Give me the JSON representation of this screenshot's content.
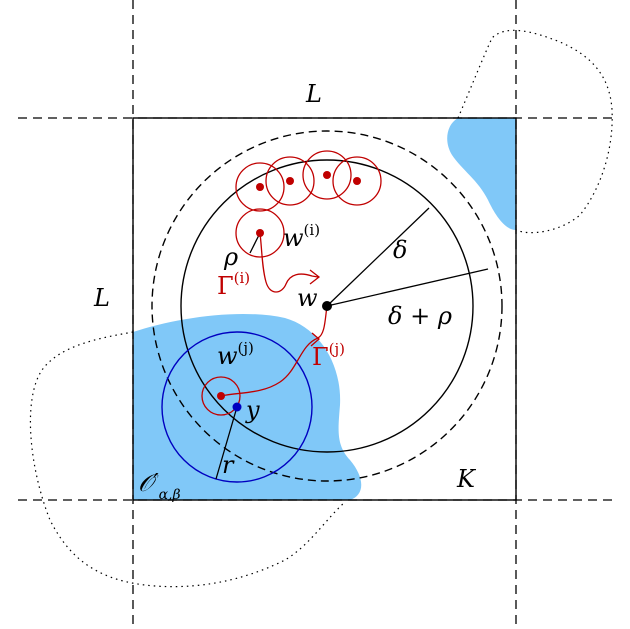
{
  "labels": {
    "L_top": "L",
    "L_left": "L",
    "K": "K",
    "rho": "ρ",
    "delta": "δ",
    "delta_plus_rho": "δ + ρ",
    "w": "w",
    "w_i_base": "w",
    "w_i_sup": "(i)",
    "w_j_base": "w",
    "w_j_sup": "(j)",
    "gamma_i_base": "Γ",
    "gamma_i_sup": "(i)",
    "gamma_j_base": "Γ",
    "gamma_j_sup": "(j)",
    "y": "y",
    "r": "r",
    "O_base": "𝒪′",
    "O_sub": "α,β"
  },
  "colors": {
    "region_fill": "#80c8f8",
    "red": "#c00000",
    "blue": "#0000c0",
    "black": "#000000"
  }
}
